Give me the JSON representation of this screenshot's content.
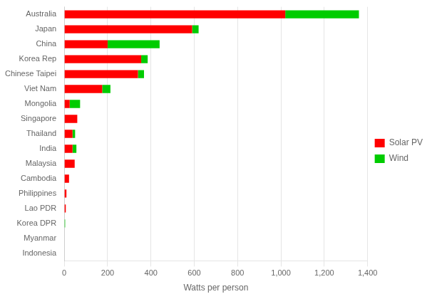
{
  "chart_data": {
    "type": "bar",
    "orientation": "horizontal",
    "stacked": true,
    "categories": [
      "Australia",
      "Japan",
      "China",
      "Korea Rep",
      "Chinese Taipei",
      "Viet Nam",
      "Mongolia",
      "Singapore",
      "Thailand",
      "India",
      "Malaysia",
      "Cambodia",
      "Philippines",
      "Lao PDR",
      "Korea DPR",
      "Myanmar",
      "Indonesia"
    ],
    "series": [
      {
        "name": "Solar PV",
        "color": "#FF0000",
        "values": [
          1020,
          590,
          200,
          355,
          340,
          175,
          25,
          60,
          38,
          38,
          48,
          22,
          10,
          7,
          0,
          0,
          0
        ]
      },
      {
        "name": "Wind",
        "color": "#00CC00",
        "values": [
          340,
          30,
          240,
          30,
          28,
          38,
          48,
          0,
          12,
          18,
          0,
          0,
          0,
          0,
          4,
          0,
          0
        ]
      }
    ],
    "xlabel": "Watts per person",
    "xlim": [
      0,
      1400
    ],
    "xticks": [
      0,
      200,
      400,
      600,
      800,
      {
        "value": 1000,
        "label": "1,000"
      },
      {
        "value": 1200,
        "label": "1,200"
      },
      {
        "value": 1400,
        "label": "1,400"
      }
    ],
    "grid": true,
    "legend": "right"
  }
}
